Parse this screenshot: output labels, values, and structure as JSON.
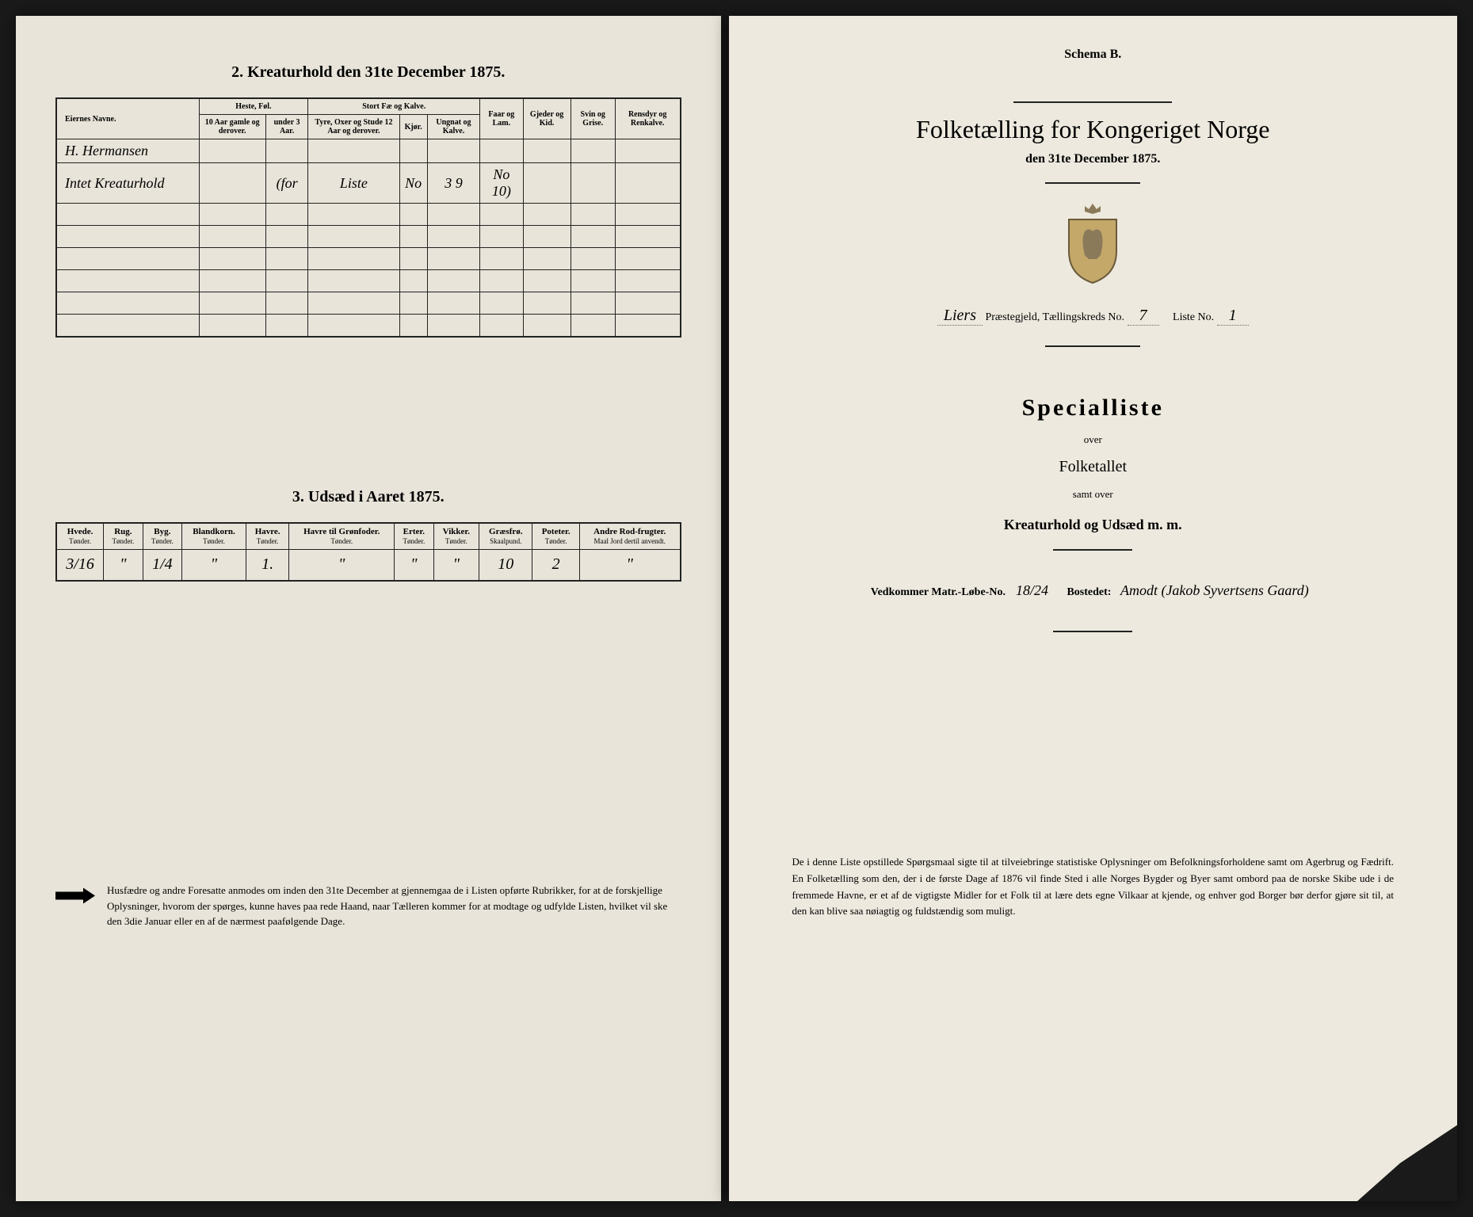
{
  "left_page": {
    "section2": {
      "title": "2. Kreaturhold den 31te December 1875.",
      "headers": {
        "name": "Eiernes Navne.",
        "heste_group": "Heste, Føl.",
        "heste_a": "10 Aar gamle og derover.",
        "heste_b": "under 3 Aar.",
        "stort_group": "Stort Fæ og Kalve.",
        "stort_a": "Tyre, Oxer og Stude 12 Aar og derover.",
        "stort_b": "Kjør.",
        "stort_c": "Ungnat og Kalve.",
        "faar": "Faar og Lam.",
        "gjeder": "Gjeder og Kid.",
        "svin": "Svin og Grise.",
        "rensdyr": "Rensdyr og Renkalve."
      },
      "rows": [
        {
          "name": "H. Hermansen",
          "c1": "",
          "c2": "",
          "c3": "",
          "c4": "",
          "c5": "",
          "c6": "",
          "c7": "",
          "c8": "",
          "c9": ""
        },
        {
          "name": "Intet Kreaturhold",
          "c1": "",
          "c2": "(for",
          "c3": "Liste",
          "c4": "No",
          "c5": "3 9",
          "c6": "No 10)",
          "c7": "",
          "c8": "",
          "c9": ""
        }
      ]
    },
    "section3": {
      "title": "3. Udsæd i Aaret 1875.",
      "headers": {
        "hvede": "Hvede.",
        "rug": "Rug.",
        "byg": "Byg.",
        "bland": "Blandkorn.",
        "havre": "Havre.",
        "havre_gron": "Havre til Grønfoder.",
        "erter": "Erter.",
        "vikker": "Vikker.",
        "graes": "Græsfrø.",
        "poteter": "Poteter.",
        "andre": "Andre Rod-frugter."
      },
      "sub": {
        "tonder": "Tønder.",
        "skaal": "Skaalpund.",
        "maal": "Maal Jord dertil anvendt."
      },
      "row": {
        "hvede": "3/16",
        "rug": "\"",
        "byg": "1/4",
        "bland": "\"",
        "havre": "1.",
        "havre_gron": "\"",
        "erter": "\"",
        "vikker": "\"",
        "graes": "10",
        "poteter": "2",
        "andre": "\""
      }
    },
    "footnote": "Husfædre og andre Foresatte anmodes om inden den 31te December at gjennemgaa de i Listen opførte Rubrikker, for at de forskjellige Oplysninger, hvorom der spørges, kunne haves paa rede Haand, naar Tælleren kommer for at modtage og udfylde Listen, hvilket vil ske den 3die Januar eller en af de nærmest paafølgende Dage."
  },
  "right_page": {
    "schema": "Schema B.",
    "main_title": "Folketælling for Kongeriget Norge",
    "main_sub": "den 31te December 1875.",
    "field1_prefix": "Liers",
    "field1_label": " Præstegjeld, Tællingskreds No.",
    "field1_val": "7",
    "field1_label2": "Liste No.",
    "field1_val2": "1",
    "specialliste": "Specialliste",
    "over": "over",
    "folketallet": "Folketallet",
    "samt_over": "samt over",
    "kreatur": "Kreaturhold og Udsæd m. m.",
    "bottom_label1": "Vedkommer Matr.-Løbe-No.",
    "bottom_val1": "18/24",
    "bottom_label2": "Bostedet:",
    "bottom_val2": "Amodt (Jakob Syvertsens Gaard)",
    "bottom_para": "De i denne Liste opstillede Spørgsmaal sigte til at tilveiebringe statistiske Oplysninger om Befolkningsforholdene samt om Agerbrug og Fædrift. En Folketælling som den, der i de første Dage af 1876 vil finde Sted i alle Norges Bygder og Byer samt ombord paa de norske Skibe ude i de fremmede Havne, er et af de vigtigste Midler for et Folk til at lære dets egne Vilkaar at kjende, og enhver god Borger bør derfor gjøre sit til, at den kan blive saa nøiagtig og fuldstændig som muligt."
  }
}
